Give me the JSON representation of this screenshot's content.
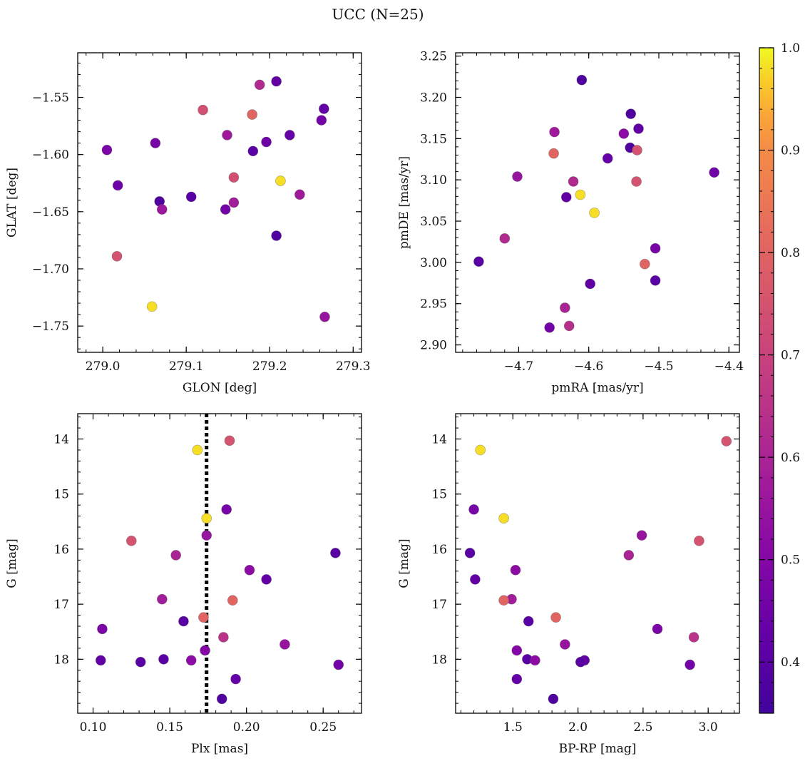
{
  "figure": {
    "title": "UCC (N=25)"
  },
  "colorbar": {
    "colormap": "plasma",
    "vmin": 0.35,
    "vmax": 1.0,
    "ticks": [
      "0.4",
      "0.5",
      "0.6",
      "0.7",
      "0.8",
      "0.9",
      "1.0"
    ]
  },
  "chart_data": [
    {
      "type": "scatter",
      "xlabel": "GLON [deg]",
      "ylabel": "GLAT [deg]",
      "xlim": [
        278.97,
        279.31
      ],
      "ylim": [
        -1.773,
        -1.511
      ],
      "xticks": [
        279.0,
        279.1,
        279.2,
        279.3
      ],
      "xticklabels": [
        "279.0",
        "279.1",
        "279.2",
        "279.3"
      ],
      "yticks": [
        -1.55,
        -1.6,
        -1.65,
        -1.7,
        -1.75
      ],
      "yticklabels": [
        "−1.55",
        "−1.60",
        "−1.65",
        "−1.70",
        "−1.75"
      ],
      "y_inverted": false,
      "points": [
        {
          "x": 279.005,
          "y": -1.596,
          "c": 0.48
        },
        {
          "x": 279.018,
          "y": -1.627,
          "c": 0.45
        },
        {
          "x": 279.017,
          "y": -1.689,
          "c": 0.75
        },
        {
          "x": 279.059,
          "y": -1.733,
          "c": 0.98
        },
        {
          "x": 279.063,
          "y": -1.59,
          "c": 0.47
        },
        {
          "x": 279.068,
          "y": -1.641,
          "c": 0.38
        },
        {
          "x": 279.071,
          "y": -1.648,
          "c": 0.56
        },
        {
          "x": 279.106,
          "y": -1.637,
          "c": 0.4
        },
        {
          "x": 279.12,
          "y": -1.561,
          "c": 0.74
        },
        {
          "x": 279.147,
          "y": -1.648,
          "c": 0.46
        },
        {
          "x": 279.149,
          "y": -1.583,
          "c": 0.57
        },
        {
          "x": 279.157,
          "y": -1.62,
          "c": 0.74
        },
        {
          "x": 279.157,
          "y": -1.642,
          "c": 0.58
        },
        {
          "x": 279.179,
          "y": -1.565,
          "c": 0.8
        },
        {
          "x": 279.18,
          "y": -1.597,
          "c": 0.4
        },
        {
          "x": 279.188,
          "y": -1.539,
          "c": 0.62
        },
        {
          "x": 279.196,
          "y": -1.589,
          "c": 0.45
        },
        {
          "x": 279.208,
          "y": -1.536,
          "c": 0.42
        },
        {
          "x": 279.208,
          "y": -1.671,
          "c": 0.38
        },
        {
          "x": 279.213,
          "y": -1.623,
          "c": 0.98
        },
        {
          "x": 279.224,
          "y": -1.583,
          "c": 0.43
        },
        {
          "x": 279.236,
          "y": -1.635,
          "c": 0.57
        },
        {
          "x": 279.262,
          "y": -1.57,
          "c": 0.46
        },
        {
          "x": 279.265,
          "y": -1.56,
          "c": 0.42
        },
        {
          "x": 279.266,
          "y": -1.742,
          "c": 0.55
        }
      ]
    },
    {
      "type": "scatter",
      "xlabel": "pmRA [mas/yr]",
      "ylabel": "pmDE [mas/yr]",
      "xlim": [
        -4.79,
        -4.385
      ],
      "ylim": [
        2.891,
        3.254
      ],
      "xticks": [
        -4.7,
        -4.6,
        -4.5,
        -4.4
      ],
      "xticklabels": [
        "−4.7",
        "−4.6",
        "−4.5",
        "−4.4"
      ],
      "yticks": [
        2.9,
        2.95,
        3.0,
        3.05,
        3.1,
        3.15,
        3.2,
        3.25
      ],
      "yticklabels": [
        "2.90",
        "2.95",
        "3.00",
        "3.05",
        "3.10",
        "3.15",
        "3.20",
        "3.25"
      ],
      "y_inverted": false,
      "points": [
        {
          "x": -4.757,
          "y": 3.001,
          "c": 0.4
        },
        {
          "x": -4.72,
          "y": 3.029,
          "c": 0.62
        },
        {
          "x": -4.702,
          "y": 3.104,
          "c": 0.55
        },
        {
          "x": -4.656,
          "y": 2.921,
          "c": 0.46
        },
        {
          "x": -4.65,
          "y": 3.132,
          "c": 0.8
        },
        {
          "x": -4.649,
          "y": 3.158,
          "c": 0.57
        },
        {
          "x": -4.634,
          "y": 2.945,
          "c": 0.6
        },
        {
          "x": -4.632,
          "y": 3.079,
          "c": 0.42
        },
        {
          "x": -4.628,
          "y": 2.923,
          "c": 0.64
        },
        {
          "x": -4.622,
          "y": 3.098,
          "c": 0.62
        },
        {
          "x": -4.612,
          "y": 3.082,
          "c": 0.98
        },
        {
          "x": -4.61,
          "y": 3.221,
          "c": 0.38
        },
        {
          "x": -4.598,
          "y": 2.974,
          "c": 0.42
        },
        {
          "x": -4.592,
          "y": 3.06,
          "c": 0.98
        },
        {
          "x": -4.573,
          "y": 3.126,
          "c": 0.43
        },
        {
          "x": -4.55,
          "y": 3.156,
          "c": 0.52
        },
        {
          "x": -4.541,
          "y": 3.139,
          "c": 0.39
        },
        {
          "x": -4.54,
          "y": 3.18,
          "c": 0.38
        },
        {
          "x": -4.532,
          "y": 3.098,
          "c": 0.75
        },
        {
          "x": -4.531,
          "y": 3.136,
          "c": 0.75
        },
        {
          "x": -4.529,
          "y": 3.162,
          "c": 0.42
        },
        {
          "x": -4.52,
          "y": 2.998,
          "c": 0.8
        },
        {
          "x": -4.505,
          "y": 2.978,
          "c": 0.4
        },
        {
          "x": -4.505,
          "y": 3.017,
          "c": 0.47
        },
        {
          "x": -4.421,
          "y": 3.109,
          "c": 0.45
        }
      ]
    },
    {
      "type": "scatter",
      "xlabel": "Plx [mas]",
      "ylabel": "G [mag]",
      "xlim": [
        0.09,
        0.275
      ],
      "ylim": [
        13.54,
        18.98
      ],
      "xticks": [
        0.1,
        0.15,
        0.2,
        0.25
      ],
      "xticklabels": [
        "0.10",
        "0.15",
        "0.20",
        "0.25"
      ],
      "yticks": [
        14,
        15,
        16,
        17,
        18
      ],
      "yticklabels": [
        "14",
        "15",
        "16",
        "17",
        "18"
      ],
      "y_inverted": true,
      "vline": {
        "x": 0.174,
        "style": "dotted",
        "color": "#000000"
      },
      "points": [
        {
          "x": 0.168,
          "y": 14.2,
          "c": 0.98
        },
        {
          "x": 0.189,
          "y": 14.03,
          "c": 0.75
        },
        {
          "x": 0.187,
          "y": 15.28,
          "c": 0.47
        },
        {
          "x": 0.174,
          "y": 15.44,
          "c": 0.98
        },
        {
          "x": 0.174,
          "y": 15.75,
          "c": 0.55
        },
        {
          "x": 0.125,
          "y": 15.85,
          "c": 0.75
        },
        {
          "x": 0.154,
          "y": 16.11,
          "c": 0.6
        },
        {
          "x": 0.258,
          "y": 16.07,
          "c": 0.4
        },
        {
          "x": 0.202,
          "y": 16.38,
          "c": 0.52
        },
        {
          "x": 0.213,
          "y": 16.55,
          "c": 0.42
        },
        {
          "x": 0.145,
          "y": 16.91,
          "c": 0.58
        },
        {
          "x": 0.191,
          "y": 16.93,
          "c": 0.8
        },
        {
          "x": 0.172,
          "y": 17.24,
          "c": 0.8
        },
        {
          "x": 0.159,
          "y": 17.31,
          "c": 0.4
        },
        {
          "x": 0.106,
          "y": 17.45,
          "c": 0.48
        },
        {
          "x": 0.185,
          "y": 17.6,
          "c": 0.65
        },
        {
          "x": 0.225,
          "y": 17.73,
          "c": 0.55
        },
        {
          "x": 0.173,
          "y": 17.84,
          "c": 0.5
        },
        {
          "x": 0.105,
          "y": 18.02,
          "c": 0.42
        },
        {
          "x": 0.131,
          "y": 18.05,
          "c": 0.4
        },
        {
          "x": 0.146,
          "y": 18.0,
          "c": 0.4
        },
        {
          "x": 0.164,
          "y": 18.02,
          "c": 0.52
        },
        {
          "x": 0.26,
          "y": 18.1,
          "c": 0.46
        },
        {
          "x": 0.193,
          "y": 18.36,
          "c": 0.43
        },
        {
          "x": 0.184,
          "y": 18.72,
          "c": 0.38
        }
      ]
    },
    {
      "type": "scatter",
      "xlabel": "BP-RP [mag]",
      "ylabel": "G [mag]",
      "xlim": [
        1.06,
        3.24
      ],
      "ylim": [
        13.54,
        18.98
      ],
      "xticks": [
        1.5,
        2.0,
        2.5,
        3.0
      ],
      "xticklabels": [
        "1.5",
        "2.0",
        "2.5",
        "3.0"
      ],
      "yticks": [
        14,
        15,
        16,
        17,
        18
      ],
      "yticklabels": [
        "14",
        "15",
        "16",
        "17",
        "18"
      ],
      "y_inverted": true,
      "points": [
        {
          "x": 1.25,
          "y": 14.2,
          "c": 0.98
        },
        {
          "x": 3.14,
          "y": 14.04,
          "c": 0.75
        },
        {
          "x": 1.2,
          "y": 15.28,
          "c": 0.47
        },
        {
          "x": 1.43,
          "y": 15.44,
          "c": 0.98
        },
        {
          "x": 2.49,
          "y": 15.75,
          "c": 0.55
        },
        {
          "x": 2.93,
          "y": 15.85,
          "c": 0.75
        },
        {
          "x": 1.17,
          "y": 16.07,
          "c": 0.4
        },
        {
          "x": 2.39,
          "y": 16.11,
          "c": 0.6
        },
        {
          "x": 1.52,
          "y": 16.38,
          "c": 0.52
        },
        {
          "x": 1.21,
          "y": 16.55,
          "c": 0.42
        },
        {
          "x": 1.49,
          "y": 16.91,
          "c": 0.58
        },
        {
          "x": 1.43,
          "y": 16.93,
          "c": 0.8
        },
        {
          "x": 1.83,
          "y": 17.24,
          "c": 0.8
        },
        {
          "x": 1.62,
          "y": 17.31,
          "c": 0.4
        },
        {
          "x": 2.61,
          "y": 17.45,
          "c": 0.48
        },
        {
          "x": 2.89,
          "y": 17.6,
          "c": 0.65
        },
        {
          "x": 1.9,
          "y": 17.73,
          "c": 0.55
        },
        {
          "x": 1.53,
          "y": 17.84,
          "c": 0.5
        },
        {
          "x": 1.61,
          "y": 18.0,
          "c": 0.4
        },
        {
          "x": 1.67,
          "y": 18.02,
          "c": 0.52
        },
        {
          "x": 2.05,
          "y": 18.02,
          "c": 0.42
        },
        {
          "x": 2.02,
          "y": 18.05,
          "c": 0.4
        },
        {
          "x": 2.86,
          "y": 18.1,
          "c": 0.46
        },
        {
          "x": 1.53,
          "y": 18.36,
          "c": 0.43
        },
        {
          "x": 1.81,
          "y": 18.72,
          "c": 0.38
        }
      ]
    }
  ]
}
